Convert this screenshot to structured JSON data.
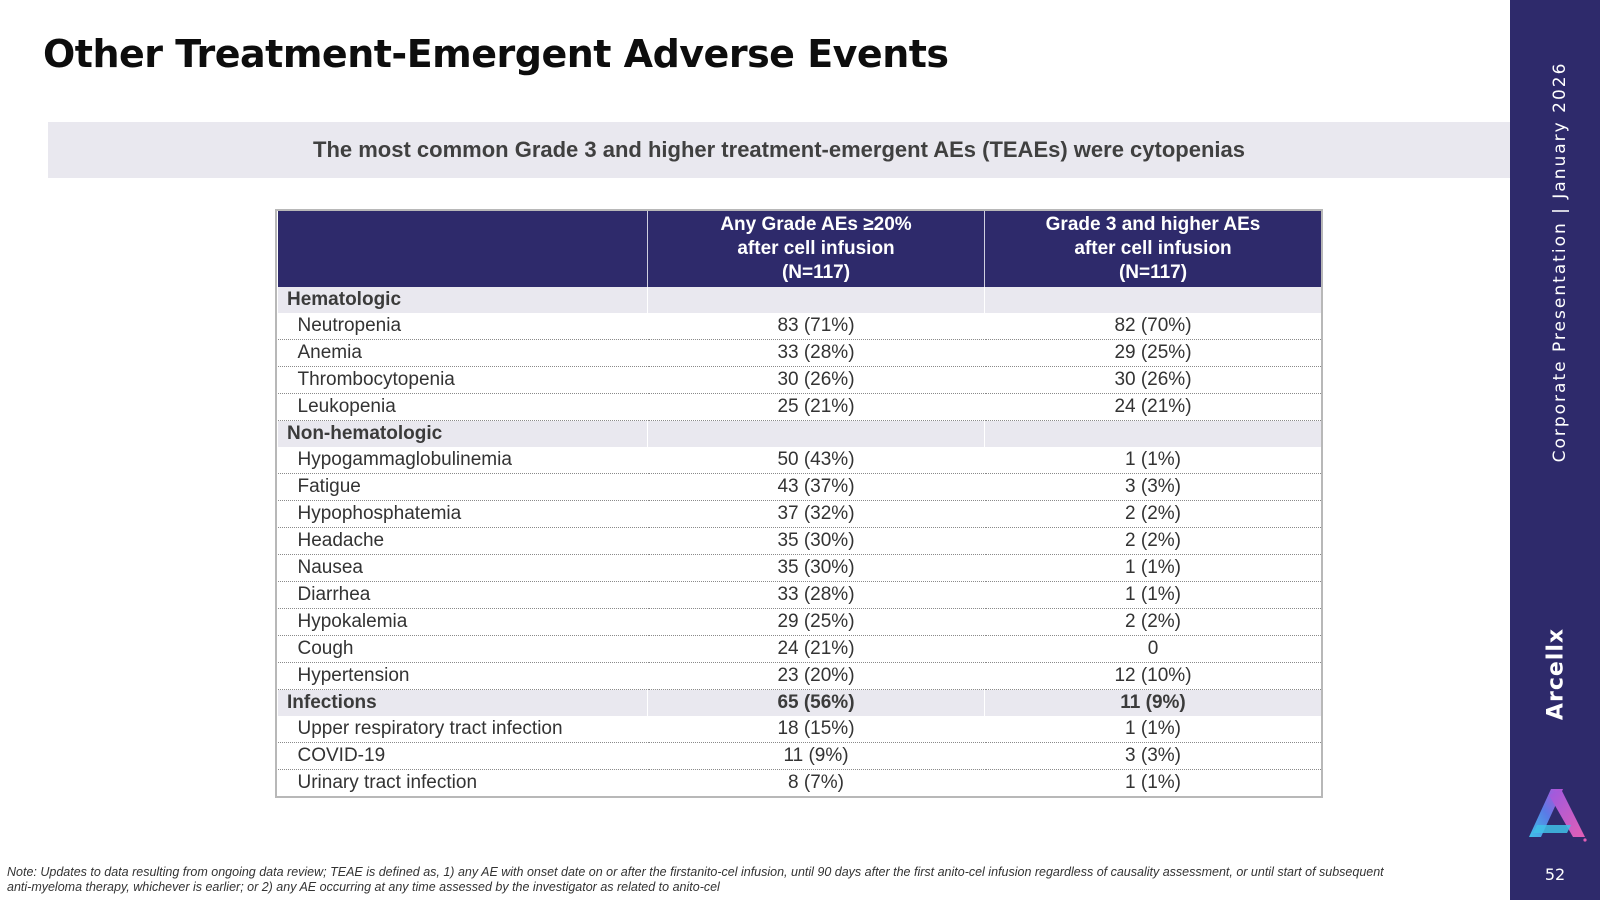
{
  "slide": {
    "title": "Other Treatment-Emergent Adverse Events",
    "banner": "The most common Grade 3 and higher treatment-emergent AEs (TEAEs) were cytopenias",
    "note_line1": "Note: Updates to data resulting from ongoing data review; TEAE is defined as, 1) any AE with onset date on or after the firstanito-cel infusion, until 90 days after the first anito-cel infusion regardless of causality assessment, or until start of subsequent",
    "note_line2": "anti-myeloma therapy, whichever is earlier; or 2) any AE occurring at any time assessed by the investigator as related to anito-cel",
    "page_number": "52"
  },
  "sidebar": {
    "vertical_text": "Corporate Presentation  |  January 2026",
    "brand": "Arcellx",
    "logo_icon": "arcellx-logo-icon",
    "bar_color": "#2e2a6b"
  },
  "table": {
    "header": {
      "col1": "",
      "col2": [
        "Any Grade AEs ≥20%",
        "after cell infusion",
        "(N=117)"
      ],
      "col3": [
        "Grade 3 and higher AEs",
        "after cell infusion",
        "(N=117)"
      ]
    },
    "rows": [
      {
        "type": "category",
        "label": "Hematologic",
        "any": "",
        "g3": ""
      },
      {
        "type": "item",
        "label": "Neutropenia",
        "any": "83 (71%)",
        "g3": "82 (70%)"
      },
      {
        "type": "item",
        "label": "Anemia",
        "any": "33 (28%)",
        "g3": "29 (25%)"
      },
      {
        "type": "item",
        "label": "Thrombocytopenia",
        "any": "30 (26%)",
        "g3": "30 (26%)"
      },
      {
        "type": "item",
        "label": "Leukopenia",
        "any": "25 (21%)",
        "g3": "24 (21%)"
      },
      {
        "type": "category",
        "label": "Non-hematologic",
        "any": "",
        "g3": ""
      },
      {
        "type": "item",
        "label": "Hypogammaglobulinemia",
        "any": "50 (43%)",
        "g3": "1 (1%)"
      },
      {
        "type": "item",
        "label": "Fatigue",
        "any": "43 (37%)",
        "g3": "3 (3%)"
      },
      {
        "type": "item",
        "label": "Hypophosphatemia",
        "any": "37 (32%)",
        "g3": "2 (2%)"
      },
      {
        "type": "item",
        "label": "Headache",
        "any": "35 (30%)",
        "g3": "2 (2%)"
      },
      {
        "type": "item",
        "label": "Nausea",
        "any": "35 (30%)",
        "g3": "1 (1%)"
      },
      {
        "type": "item",
        "label": "Diarrhea",
        "any": "33 (28%)",
        "g3": "1 (1%)"
      },
      {
        "type": "item",
        "label": "Hypokalemia",
        "any": "29 (25%)",
        "g3": "2 (2%)"
      },
      {
        "type": "item",
        "label": "Cough",
        "any": "24 (21%)",
        "g3": "0"
      },
      {
        "type": "item",
        "label": "Hypertension",
        "any": "23 (20%)",
        "g3": "12 (10%)"
      },
      {
        "type": "category",
        "label": "Infections",
        "any": "65 (56%)",
        "g3": "11 (9%)"
      },
      {
        "type": "item",
        "label": "Upper respiratory tract infection",
        "any": "18 (15%)",
        "g3": "1 (1%)"
      },
      {
        "type": "item",
        "label": "COVID-19",
        "any": "11 (9%)",
        "g3": "3 (3%)"
      },
      {
        "type": "item",
        "label": "Urinary tract infection",
        "any": "8 (7%)",
        "g3": "1 (1%)"
      }
    ]
  },
  "colors": {
    "header_bg": "#2e2a6b",
    "category_bg": "#e9e8ef",
    "banner_bg": "#e9e8ef"
  }
}
